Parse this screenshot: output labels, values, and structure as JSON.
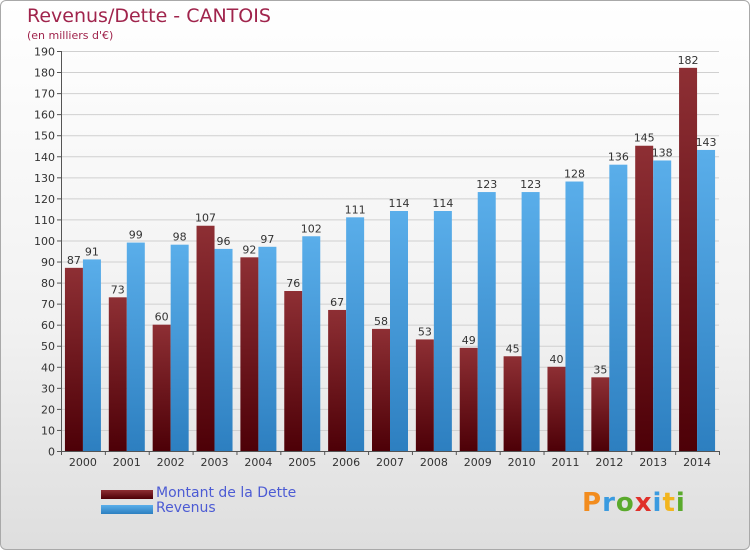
{
  "title": "Revenus/Dette - CANTOIS",
  "subtitle": "(en milliers d'€)",
  "legend": {
    "debt_label": "Montant de la Dette",
    "revenue_label": "Revenus"
  },
  "logo": {
    "text": "Proxiti",
    "letters": [
      {
        "ch": "P",
        "color": "#f28c1e"
      },
      {
        "ch": "r",
        "color": "#3a9be0"
      },
      {
        "ch": "o",
        "color": "#5aaa2c"
      },
      {
        "ch": "x",
        "color": "#e0302a"
      },
      {
        "ch": "i",
        "color": "#3a9be0"
      },
      {
        "ch": "t",
        "color": "#f2b51e"
      },
      {
        "ch": "i",
        "color": "#5aaa2c"
      }
    ]
  },
  "colors": {
    "debt_top": "#8e2f34",
    "debt_bottom": "#4d0007",
    "revenue_top": "#5aaeea",
    "revenue_bottom": "#2d7fc0",
    "grid": "#d0d0d0",
    "axis_text": "#333333"
  },
  "chart_data": {
    "type": "bar",
    "categories": [
      "2000",
      "2001",
      "2002",
      "2003",
      "2004",
      "2005",
      "2006",
      "2007",
      "2008",
      "2009",
      "2010",
      "2011",
      "2012",
      "2013",
      "2014"
    ],
    "series": [
      {
        "name": "Montant de la Dette",
        "values": [
          87,
          73,
          60,
          107,
          92,
          76,
          67,
          58,
          53,
          49,
          45,
          40,
          35,
          145,
          182
        ]
      },
      {
        "name": "Revenus",
        "values": [
          91,
          99,
          98,
          96,
          97,
          102,
          111,
          114,
          114,
          123,
          123,
          128,
          136,
          138,
          143
        ]
      }
    ],
    "ylim": [
      0,
      190
    ],
    "yticks": [
      0,
      10,
      20,
      30,
      40,
      50,
      60,
      70,
      80,
      90,
      100,
      110,
      120,
      130,
      140,
      150,
      160,
      170,
      180,
      190
    ],
    "grid": true,
    "legend_position": "bottom-left"
  }
}
